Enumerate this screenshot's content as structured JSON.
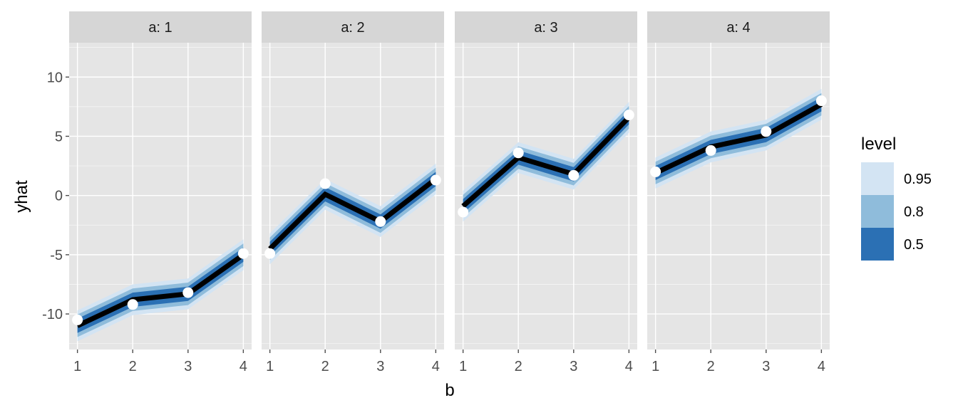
{
  "chart_data": {
    "type": "line",
    "xlabel": "b",
    "ylabel": "yhat",
    "x": [
      1,
      2,
      3,
      4
    ],
    "xlim": [
      0.85,
      4.15
    ],
    "ylim": [
      -13.0,
      12.9
    ],
    "yticks": [
      -10,
      -5,
      0,
      5,
      10
    ],
    "grid": true,
    "legend_position": "right",
    "legend": {
      "title": "level",
      "entries": [
        {
          "label": "0.95",
          "color": "#d3e4f3"
        },
        {
          "label": "0.8",
          "color": "#8fbcdb"
        },
        {
          "label": "0.5",
          "color": "#2b70b4"
        }
      ]
    },
    "colors": {
      "panel_bg": "#e5e5e5",
      "strip_bg": "#d6d6d6",
      "grid": "#ffffff",
      "line": "#000000",
      "point": "#ffffff",
      "tick": "#4d4d4d"
    },
    "panels": [
      {
        "label": "a: 1",
        "line": [
          -11.0,
          -8.8,
          -8.3,
          -5.0
        ],
        "points": [
          -10.5,
          -9.2,
          -8.2,
          -4.9
        ],
        "band_halfwidths": {
          "0.95": 1.3,
          "0.8": 0.95,
          "0.5": 0.6
        }
      },
      {
        "label": "a: 2",
        "line": [
          -4.5,
          0.1,
          -2.2,
          1.4
        ],
        "points": [
          -4.9,
          1.0,
          -2.2,
          1.3
        ],
        "band_halfwidths": {
          "0.95": 1.3,
          "0.8": 0.95,
          "0.5": 0.6
        }
      },
      {
        "label": "a: 3",
        "line": [
          -0.9,
          3.2,
          1.8,
          6.6
        ],
        "points": [
          -1.4,
          3.6,
          1.7,
          6.8
        ],
        "band_halfwidths": {
          "0.95": 1.3,
          "0.8": 0.95,
          "0.5": 0.6
        }
      },
      {
        "label": "a: 4",
        "line": [
          1.9,
          4.1,
          5.1,
          7.7
        ],
        "points": [
          2.0,
          3.8,
          5.4,
          8.0
        ],
        "band_halfwidths": {
          "0.95": 1.3,
          "0.8": 0.95,
          "0.5": 0.6
        }
      }
    ]
  }
}
